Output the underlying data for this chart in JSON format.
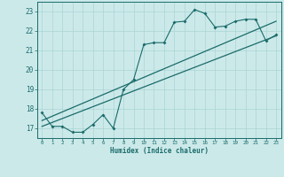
{
  "title": "",
  "xlabel": "Humidex (Indice chaleur)",
  "bg_color": "#cce9e9",
  "grid_color": "#aad4d4",
  "line_color": "#1a6b6b",
  "xlim": [
    -0.5,
    23.5
  ],
  "ylim": [
    16.5,
    23.5
  ],
  "xticks": [
    0,
    1,
    2,
    3,
    4,
    5,
    6,
    7,
    8,
    9,
    10,
    11,
    12,
    13,
    14,
    15,
    16,
    17,
    18,
    19,
    20,
    21,
    22,
    23
  ],
  "yticks": [
    17,
    18,
    19,
    20,
    21,
    22,
    23
  ],
  "curve1_x": [
    0,
    1,
    2,
    3,
    4,
    5,
    6,
    7,
    8,
    9,
    10,
    11,
    12,
    13,
    14,
    15,
    16,
    17,
    18,
    19,
    20,
    21,
    22,
    23
  ],
  "curve1_y": [
    17.8,
    17.1,
    17.1,
    16.8,
    16.8,
    17.2,
    17.7,
    17.0,
    19.0,
    19.5,
    21.3,
    21.4,
    21.4,
    22.45,
    22.5,
    23.1,
    22.9,
    22.2,
    22.25,
    22.5,
    22.6,
    22.6,
    21.5,
    21.8
  ],
  "line1_x": [
    0,
    23
  ],
  "line1_y": [
    17.1,
    21.75
  ],
  "line2_x": [
    0,
    23
  ],
  "line2_y": [
    17.4,
    22.5
  ]
}
